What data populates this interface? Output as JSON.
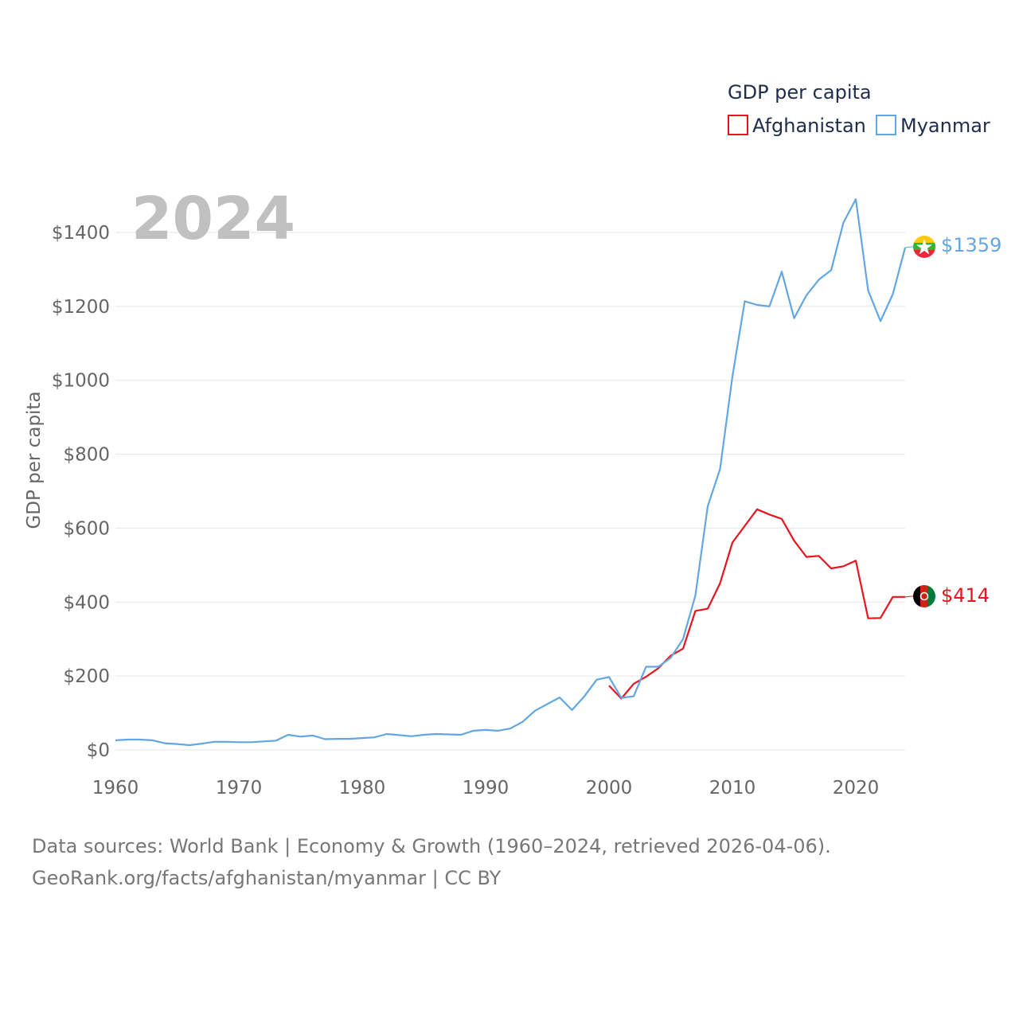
{
  "chart_data": {
    "type": "line",
    "title": "GDP per capita",
    "ylabel": "GDP per capita",
    "xlabel": "",
    "year_label": "2024",
    "xlim": [
      1960,
      2024
    ],
    "ylim": [
      0,
      1500
    ],
    "x_ticks": [
      1960,
      1970,
      1980,
      1990,
      2000,
      2010,
      2020
    ],
    "x_tick_labels": [
      "1960",
      "1970",
      "1980",
      "1990",
      "2000",
      "2010",
      "2020"
    ],
    "y_ticks": [
      0,
      200,
      400,
      600,
      800,
      1000,
      1200,
      1400
    ],
    "y_tick_labels": [
      "$0",
      "$200",
      "$400",
      "$600",
      "$800",
      "$1000",
      "$1200",
      "$1400"
    ],
    "grid": true,
    "legend": {
      "title": "GDP per capita",
      "position": "top-right"
    },
    "series": [
      {
        "name": "Afghanistan",
        "color": "#e8141e",
        "end_label": "$414",
        "x": [
          2000,
          2001,
          2002,
          2003,
          2004,
          2005,
          2006,
          2007,
          2008,
          2009,
          2010,
          2011,
          2012,
          2013,
          2014,
          2015,
          2016,
          2017,
          2018,
          2019,
          2020,
          2021,
          2022,
          2023,
          2024
        ],
        "values": [
          174,
          139,
          179,
          198,
          221,
          255,
          274,
          376,
          382,
          451,
          561,
          606,
          651,
          637,
          625,
          566,
          522,
          525,
          491,
          497,
          512,
          356,
          357,
          414,
          414
        ]
      },
      {
        "name": "Myanmar",
        "color": "#62a6e4",
        "end_label": "$1359",
        "x": [
          1960,
          1961,
          1962,
          1963,
          1964,
          1965,
          1966,
          1967,
          1968,
          1969,
          1970,
          1971,
          1972,
          1973,
          1974,
          1975,
          1976,
          1977,
          1978,
          1979,
          1980,
          1981,
          1982,
          1983,
          1984,
          1985,
          1986,
          1987,
          1988,
          1989,
          1990,
          1991,
          1992,
          1993,
          1994,
          1995,
          1996,
          1997,
          1998,
          1999,
          2000,
          2001,
          2002,
          2003,
          2004,
          2005,
          2006,
          2007,
          2008,
          2009,
          2010,
          2011,
          2012,
          2013,
          2014,
          2015,
          2016,
          2017,
          2018,
          2019,
          2020,
          2021,
          2022,
          2023,
          2024
        ],
        "values": [
          26,
          28,
          28,
          26,
          18,
          16,
          13,
          17,
          22,
          22,
          21,
          21,
          23,
          25,
          41,
          36,
          39,
          29,
          30,
          30,
          32,
          34,
          43,
          40,
          37,
          41,
          43,
          42,
          41,
          52,
          54,
          52,
          58,
          76,
          106,
          124,
          142,
          108,
          145,
          190,
          197,
          141,
          145,
          225,
          225,
          249,
          300,
          418,
          659,
          760,
          1010,
          1214,
          1204,
          1200,
          1294,
          1168,
          1230,
          1272,
          1298,
          1427,
          1490,
          1243,
          1160,
          1233,
          1359
        ]
      }
    ]
  },
  "source": {
    "line1": "Data sources: World Bank | Economy & Growth (1960–2024, retrieved 2026-04-06).",
    "line2": "GeoRank.org/facts/afghanistan/myanmar | CC BY"
  }
}
